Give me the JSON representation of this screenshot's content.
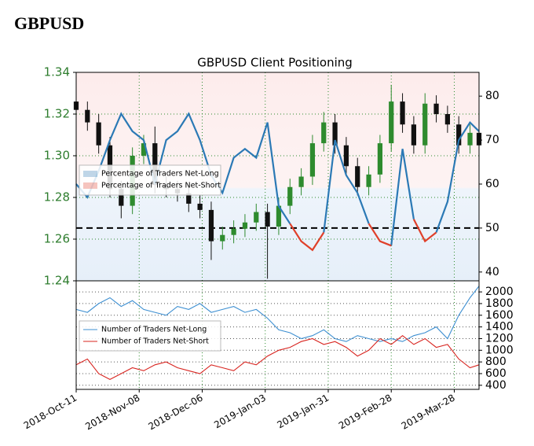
{
  "page_title": "GBPUSD",
  "chart_data": [
    {
      "type": "candlestick",
      "title": "GBPUSD Client Positioning",
      "x": [
        "2018-10-11",
        "2018-10-16",
        "2018-10-21",
        "2018-10-26",
        "2018-10-31",
        "2018-11-05",
        "2018-11-10",
        "2018-11-15",
        "2018-11-20",
        "2018-11-25",
        "2018-11-30",
        "2018-12-05",
        "2018-12-10",
        "2018-12-15",
        "2018-12-20",
        "2018-12-25",
        "2018-12-30",
        "2019-01-04",
        "2019-01-09",
        "2019-01-14",
        "2019-01-19",
        "2019-01-24",
        "2019-01-29",
        "2019-02-03",
        "2019-02-08",
        "2019-02-13",
        "2019-02-18",
        "2019-02-23",
        "2019-02-28",
        "2019-03-05",
        "2019-03-10",
        "2019-03-15",
        "2019-03-20",
        "2019-03-25",
        "2019-03-30",
        "2019-04-04",
        "2019-04-08"
      ],
      "open": [
        1.326,
        1.322,
        1.316,
        1.305,
        1.284,
        1.276,
        1.3,
        1.306,
        1.286,
        1.284,
        1.282,
        1.277,
        1.274,
        1.259,
        1.262,
        1.265,
        1.268,
        1.273,
        1.266,
        1.276,
        1.285,
        1.29,
        1.306,
        1.316,
        1.305,
        1.295,
        1.285,
        1.291,
        1.306,
        1.326,
        1.315,
        1.305,
        1.325,
        1.32,
        1.315,
        1.305,
        1.311
      ],
      "high": [
        1.33,
        1.326,
        1.32,
        1.309,
        1.288,
        1.304,
        1.31,
        1.314,
        1.29,
        1.288,
        1.286,
        1.281,
        1.278,
        1.266,
        1.269,
        1.272,
        1.277,
        1.277,
        1.28,
        1.289,
        1.294,
        1.31,
        1.321,
        1.32,
        1.309,
        1.299,
        1.295,
        1.31,
        1.334,
        1.33,
        1.319,
        1.33,
        1.329,
        1.324,
        1.319,
        1.315,
        1.315
      ],
      "low": [
        1.318,
        1.312,
        1.301,
        1.28,
        1.27,
        1.272,
        1.296,
        1.282,
        1.28,
        1.278,
        1.273,
        1.27,
        1.25,
        1.255,
        1.258,
        1.261,
        1.264,
        1.241,
        1.262,
        1.272,
        1.281,
        1.286,
        1.302,
        1.301,
        1.291,
        1.281,
        1.281,
        1.287,
        1.302,
        1.311,
        1.301,
        1.301,
        1.316,
        1.311,
        1.301,
        1.301,
        1.301
      ],
      "close": [
        1.322,
        1.316,
        1.305,
        1.284,
        1.276,
        1.3,
        1.306,
        1.286,
        1.284,
        1.282,
        1.277,
        1.274,
        1.259,
        1.262,
        1.265,
        1.268,
        1.273,
        1.266,
        1.276,
        1.285,
        1.29,
        1.306,
        1.316,
        1.305,
        1.295,
        1.285,
        1.291,
        1.306,
        1.326,
        1.315,
        1.305,
        1.325,
        1.32,
        1.315,
        1.305,
        1.311,
        1.305
      ],
      "up_color": "#2e8b2e",
      "down_color": "#111111",
      "ylim": [
        1.24,
        1.34
      ],
      "yticks": [
        1.24,
        1.26,
        1.28,
        {
          "value": 1.3,
          "label": "1.30"
        },
        1.32,
        1.34
      ],
      "y2lim": [
        38,
        85.4
      ],
      "y2ticks": [
        40,
        50,
        60,
        70,
        80
      ],
      "reference_line": {
        "axis": "y2",
        "value": 50
      },
      "series": [
        {
          "name": "Percentage of Traders Net-Long",
          "color": "#2b79b5",
          "axis": "y2",
          "values": [
            60,
            57,
            63,
            70,
            76,
            72,
            70,
            60,
            70,
            72,
            76,
            70,
            62,
            58,
            66,
            68,
            66,
            74,
            55,
            51,
            null,
            null,
            49,
            70,
            62,
            58,
            51,
            null,
            46,
            68,
            52,
            null,
            49,
            56,
            70,
            74,
            72
          ]
        },
        {
          "name": "Percentage of Traders Net-Short",
          "color": "#e0402a",
          "axis": "y2",
          "values": [
            null,
            null,
            null,
            null,
            null,
            null,
            null,
            null,
            null,
            null,
            null,
            null,
            null,
            null,
            null,
            null,
            null,
            null,
            null,
            51,
            47,
            45,
            49,
            null,
            null,
            null,
            51,
            47,
            46,
            null,
            52,
            47,
            49,
            null,
            null,
            null,
            null
          ]
        }
      ],
      "legend": "left",
      "grid": true
    },
    {
      "type": "line",
      "x": [
        "2018-10-11",
        "2018-10-16",
        "2018-10-21",
        "2018-10-26",
        "2018-10-31",
        "2018-11-05",
        "2018-11-10",
        "2018-11-15",
        "2018-11-20",
        "2018-11-25",
        "2018-11-30",
        "2018-12-05",
        "2018-12-10",
        "2018-12-15",
        "2018-12-20",
        "2018-12-25",
        "2018-12-30",
        "2019-01-04",
        "2019-01-09",
        "2019-01-14",
        "2019-01-19",
        "2019-01-24",
        "2019-01-29",
        "2019-02-03",
        "2019-02-08",
        "2019-02-13",
        "2019-02-18",
        "2019-02-23",
        "2019-02-28",
        "2019-03-05",
        "2019-03-10",
        "2019-03-15",
        "2019-03-20",
        "2019-03-25",
        "2019-03-30",
        "2019-04-04",
        "2019-04-08"
      ],
      "xlim": [
        "2018-10-11",
        "2019-04-08"
      ],
      "xticks": [
        {
          "value": "2018-10-11",
          "label": "2018-Oct-11"
        },
        {
          "value": "2018-11-08",
          "label": "2018-Nov-08"
        },
        {
          "value": "2018-12-06",
          "label": "2018-Dec-06"
        },
        {
          "value": "2019-01-03",
          "label": "2019-Jan-03"
        },
        {
          "value": "2019-01-31",
          "label": "2019-Jan-31"
        },
        {
          "value": "2019-02-28",
          "label": "2019-Feb-28"
        },
        {
          "value": "2019-03-28",
          "label": "2019-Mar-28"
        }
      ],
      "y2lim": [
        330,
        2190
      ],
      "y2ticks": [
        400,
        600,
        800,
        1000,
        1200,
        1400,
        1600,
        1800,
        2000
      ],
      "series": [
        {
          "name": "Number of Traders Net-Long",
          "color": "#3d8fd1",
          "axis": "y2",
          "values": [
            1700,
            1650,
            1800,
            1900,
            1750,
            1850,
            1700,
            1650,
            1600,
            1750,
            1700,
            1800,
            1650,
            1700,
            1750,
            1650,
            1700,
            1550,
            1350,
            1300,
            1200,
            1250,
            1350,
            1200,
            1150,
            1250,
            1200,
            1150,
            1200,
            1150,
            1250,
            1300,
            1400,
            1200,
            1600,
            1900,
            2100
          ]
        },
        {
          "name": "Number of Traders Net-Short",
          "color": "#d8241f",
          "axis": "y2",
          "values": [
            750,
            850,
            600,
            500,
            600,
            700,
            650,
            750,
            800,
            700,
            650,
            600,
            750,
            700,
            650,
            800,
            750,
            900,
            1000,
            1050,
            1150,
            1200,
            1100,
            1150,
            1050,
            900,
            1000,
            1200,
            1100,
            1250,
            1100,
            1200,
            1050,
            1100,
            850,
            700,
            750
          ]
        }
      ],
      "legend": "left",
      "grid": true
    }
  ]
}
